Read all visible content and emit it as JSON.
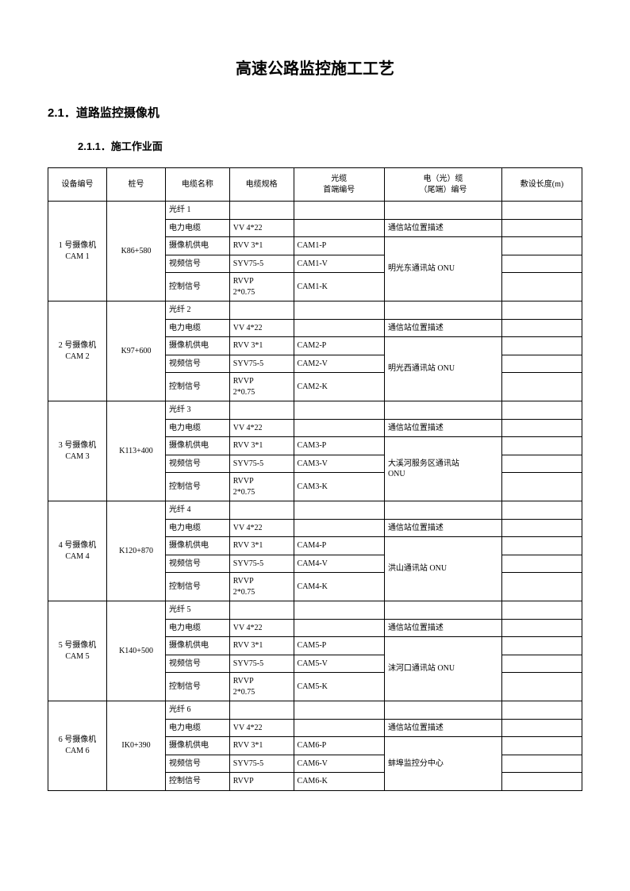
{
  "title": "高速公路监控施工工艺",
  "section": "2.1．道路监控摄像机",
  "subsection": "2.1.1．施工作业面",
  "headers": {
    "dev": "设备编号",
    "pile": "桩号",
    "cname": "电缆名称",
    "cspec": "电缆规格",
    "first_l1": "光缆",
    "first_l2": "首端编号",
    "tail_l1": "电（光）缆",
    "tail_l2": "（尾端）编号",
    "len": "敷设长度(m)"
  },
  "common": {
    "power_cable": "电力电缆",
    "power_spec": "VV 4*22",
    "cam_power": "摄像机供电",
    "cam_power_spec": "RVV 3*1",
    "video": "视频信号",
    "video_spec": "SYV75-5",
    "ctrl": "控制信号",
    "ctrl_spec_l1": "RVVP",
    "ctrl_spec_l2": "2*0.75",
    "ctrl_spec_single": "RVVP",
    "pos_desc": "通信站位置描述"
  },
  "groups": [
    {
      "dev_l1": "1 号摄像机",
      "dev_l2": "CAM 1",
      "pile": "K86+580",
      "fiber": "光纤 1",
      "p": "CAM1-P",
      "v": "CAM1-V",
      "k": "CAM1-K",
      "tail": "明光东通讯站 ONU"
    },
    {
      "dev_l1": "2 号摄像机",
      "dev_l2": "CAM 2",
      "pile": "K97+600",
      "fiber": "光纤 2",
      "p": "CAM2-P",
      "v": "CAM2-V",
      "k": "CAM2-K",
      "tail": "明光西通讯站 ONU"
    },
    {
      "dev_l1": "3 号摄像机",
      "dev_l2": "CAM 3",
      "pile": "K113+400",
      "fiber": "光纤 3",
      "p": "CAM3-P",
      "v": "CAM3-V",
      "k": "CAM3-K",
      "tail_l1": "大溪河服务区通讯站",
      "tail_l2": "ONU"
    },
    {
      "dev_l1": "4 号摄像机",
      "dev_l2": "CAM 4",
      "pile": "K120+870",
      "fiber": "光纤 4",
      "p": "CAM4-P",
      "v": "CAM4-V",
      "k": "CAM4-K",
      "tail": "洪山通讯站 ONU"
    },
    {
      "dev_l1": "5 号摄像机",
      "dev_l2": "CAM 5",
      "pile": "K140+500",
      "fiber": "光纤 5",
      "p": "CAM5-P",
      "v": "CAM5-V",
      "k": "CAM5-K",
      "tail": "沫河口通讯站 ONU"
    },
    {
      "dev_l1": "6 号摄像机",
      "dev_l2": "CAM 6",
      "pile": "IK0+390",
      "fiber": "光纤 6",
      "p": "CAM6-P",
      "v": "CAM6-V",
      "k": "CAM6-K",
      "tail": "蚌埠监控分中心",
      "ctrl_single": true
    }
  ]
}
